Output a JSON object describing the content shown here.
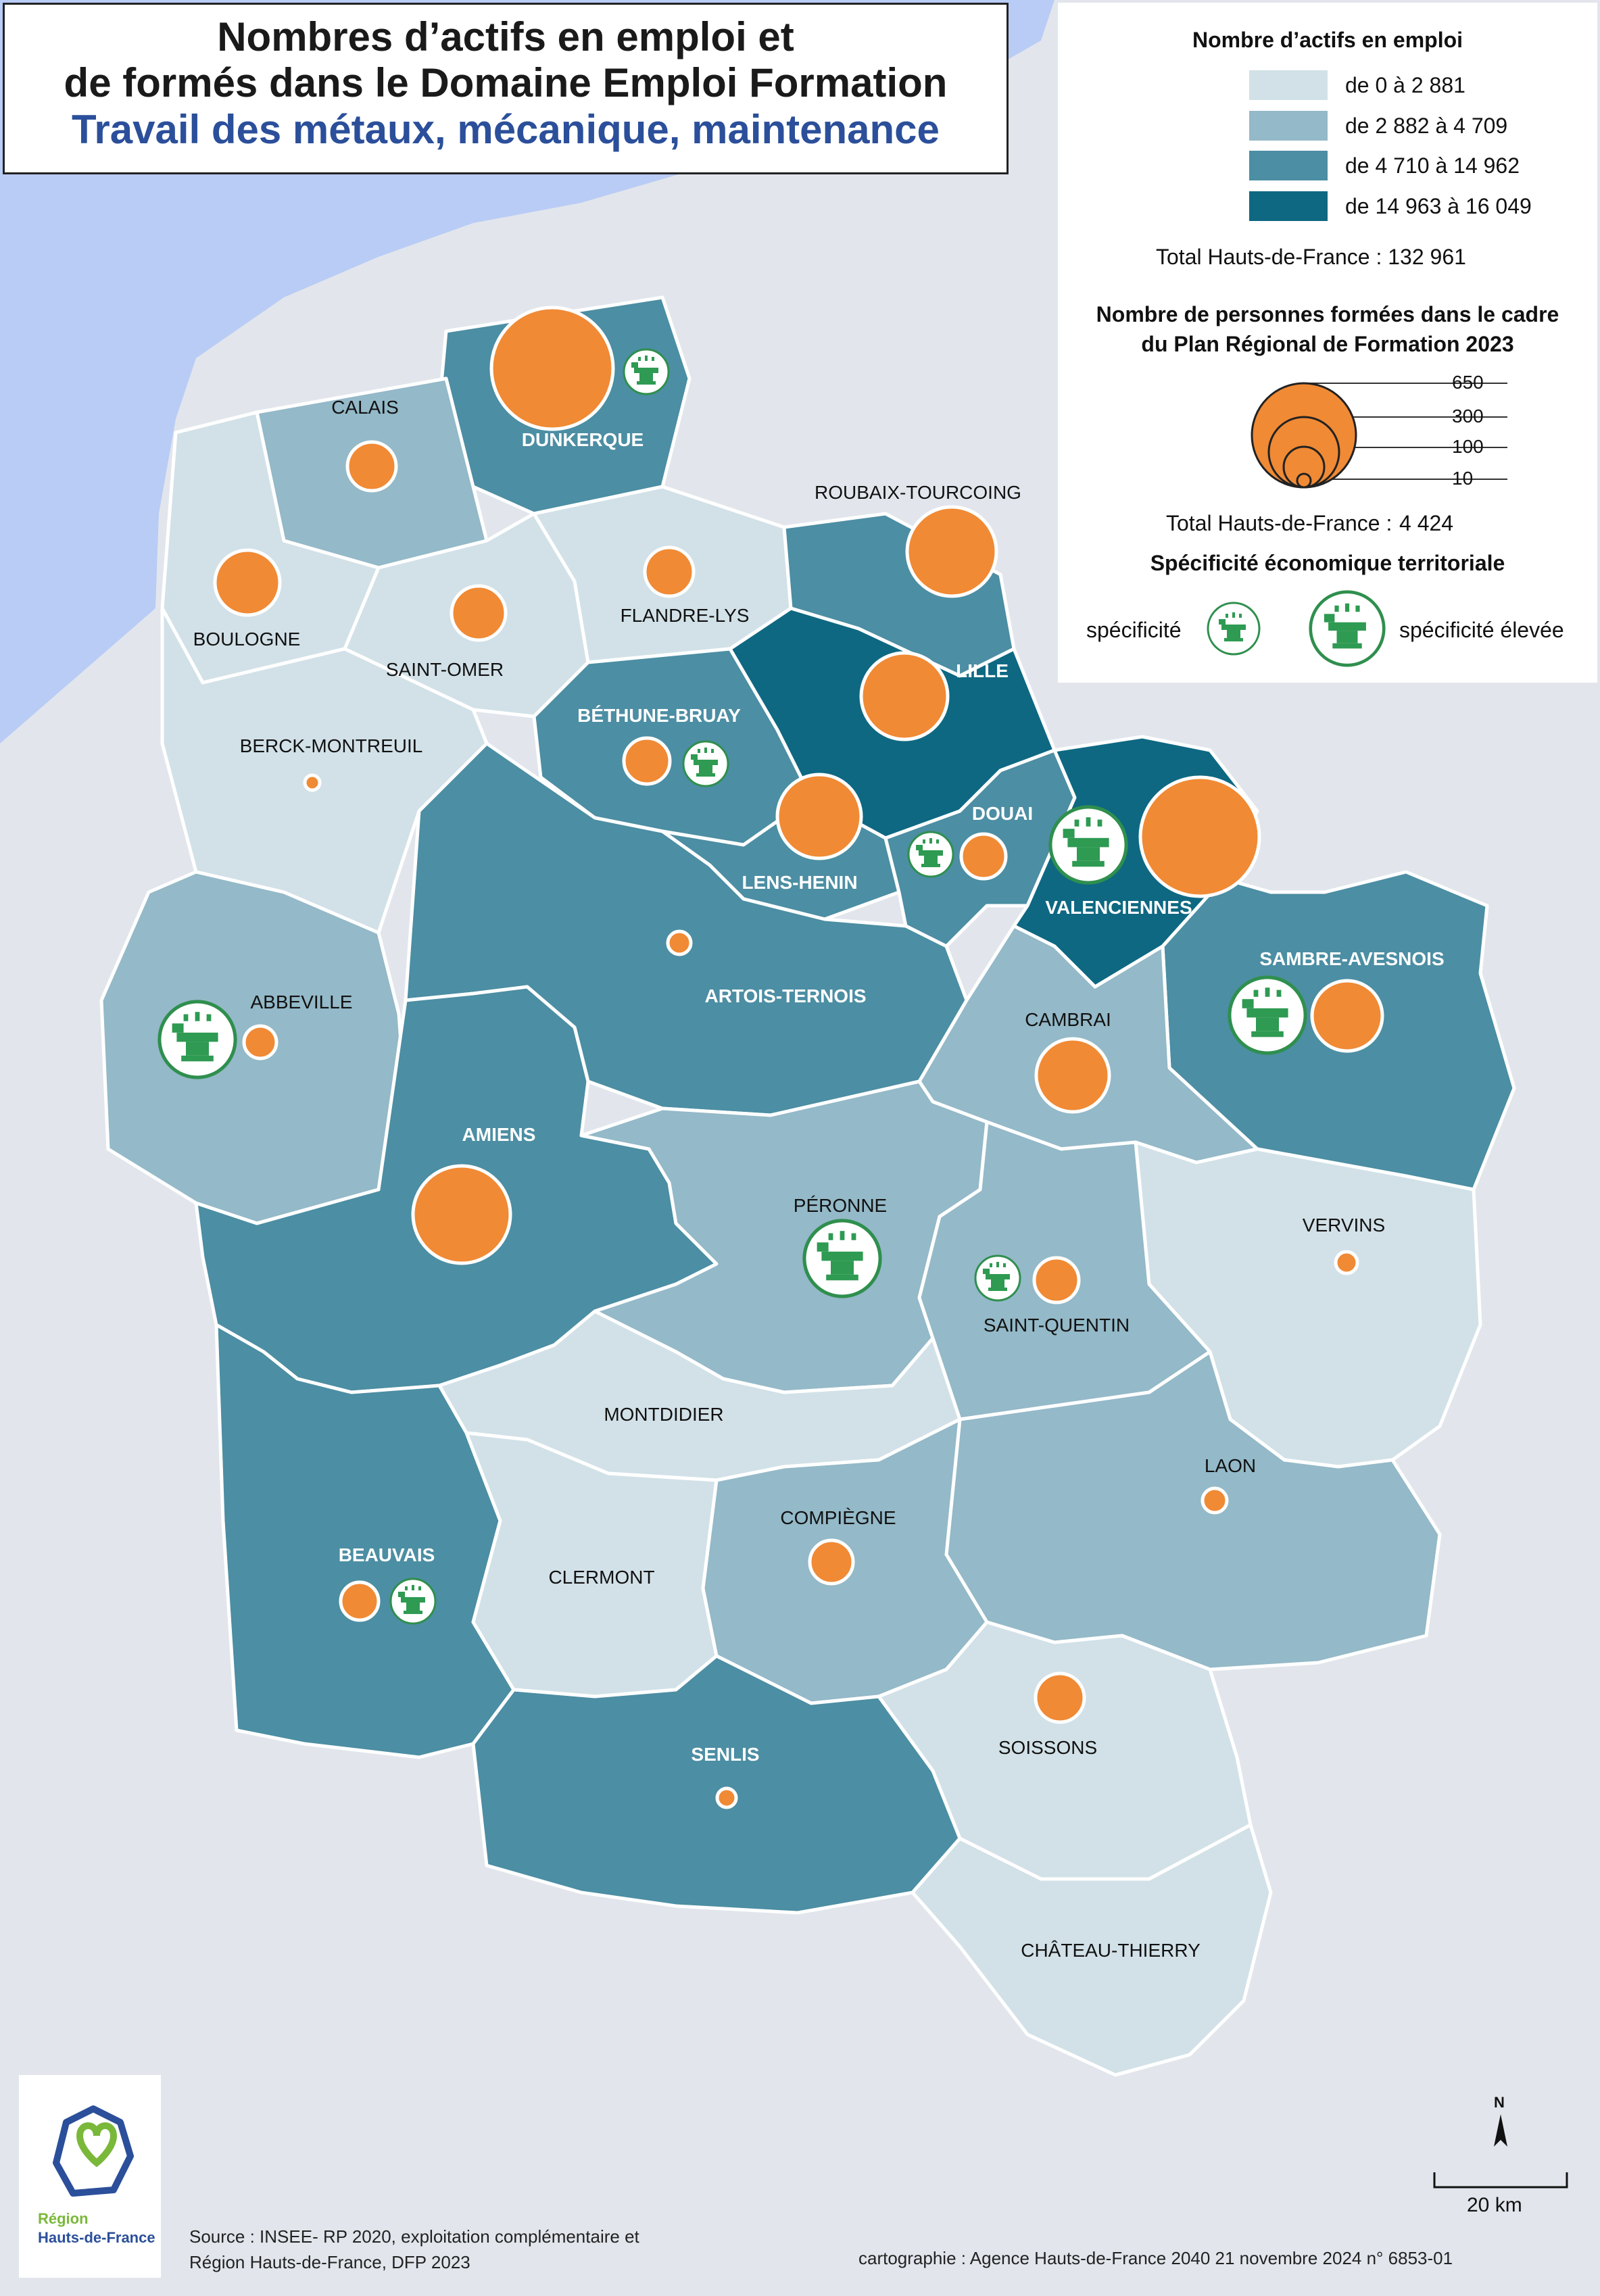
{
  "title": {
    "line1": "Nombres d’actifs en emploi et",
    "line2": "de formés dans le Domaine Emploi Formation",
    "subtitle": "Travail des métaux, mécanique, maintenance"
  },
  "legend": {
    "employment_title": "Nombre d’actifs en emploi",
    "classes": [
      {
        "label": "de 0 à 2 881",
        "color": "#d2e1e8"
      },
      {
        "label": "de 2 882 à 4 709",
        "color": "#94b9c8"
      },
      {
        "label": "de 4 710 à 14 962",
        "color": "#4c8ea3"
      },
      {
        "label": "de 14 963 à 16 049",
        "color": "#0e6882"
      }
    ],
    "employment_total": "Total Hauts-de-France : 132 961",
    "trained_title_line1": "Nombre de personnes formées dans le cadre",
    "trained_title_line2": "du Plan Régional de Formation 2023",
    "trained_sizes": [
      {
        "label": "650",
        "value": 650
      },
      {
        "label": "300",
        "value": 300
      },
      {
        "label": "100",
        "value": 100
      },
      {
        "label": "10",
        "value": 10
      }
    ],
    "trained_total_label": "Total Hauts-de-France :",
    "trained_total_value": "4 424",
    "specificity_title": "Spécificité économique territoriale",
    "specificity_label": "spécificité",
    "specificity_high_label": "spécificité élevée"
  },
  "colors": {
    "sea": "#b9ccf5",
    "outside": "#e2e6ec",
    "circle": "#f08a35",
    "specificity_green": "#2e9a52"
  },
  "zones": [
    {
      "name": "DUNKERQUE",
      "class": 2
    },
    {
      "name": "CALAIS",
      "class": 1
    },
    {
      "name": "BOULOGNE",
      "class": 0
    },
    {
      "name": "SAINT-OMER",
      "class": 0
    },
    {
      "name": "FLANDRE-LYS",
      "class": 0
    },
    {
      "name": "ROUBAIX-TOURCOING",
      "class": 2
    },
    {
      "name": "LILLE",
      "class": 3
    },
    {
      "name": "BÉTHUNE-BRUAY",
      "class": 2
    },
    {
      "name": "BERCK-MONTREUIL",
      "class": 0
    },
    {
      "name": "LENS-HENIN",
      "class": 2
    },
    {
      "name": "DOUAI",
      "class": 2
    },
    {
      "name": "VALENCIENNES",
      "class": 3
    },
    {
      "name": "ARTOIS-TERNOIS",
      "class": 2
    },
    {
      "name": "SAMBRE-AVESNOIS",
      "class": 2
    },
    {
      "name": "ABBEVILLE",
      "class": 1
    },
    {
      "name": "CAMBRAI",
      "class": 1
    },
    {
      "name": "AMIENS",
      "class": 2
    },
    {
      "name": "PÉRONNE",
      "class": 1
    },
    {
      "name": "VERVINS",
      "class": 0
    },
    {
      "name": "SAINT-QUENTIN",
      "class": 1
    },
    {
      "name": "MONTDIDIER",
      "class": 0
    },
    {
      "name": "LAON",
      "class": 1
    },
    {
      "name": "BEAUVAIS",
      "class": 2
    },
    {
      "name": "CLERMONT",
      "class": 0
    },
    {
      "name": "COMPIÈGNE",
      "class": 1
    },
    {
      "name": "SOISSONS",
      "class": 0
    },
    {
      "name": "SENLIS",
      "class": 2
    },
    {
      "name": "CHÂTEAU-THIERRY",
      "class": 0
    }
  ],
  "footer": {
    "logo_line1": "Région",
    "logo_line2": "Hauts-de-France",
    "source_line1": "Source : INSEE- RP 2020, exploitation complémentaire et",
    "source_line2": "Région Hauts-de-France, DFP 2023",
    "credit": "cartographie : Agence Hauts-de-France 2040  21 novembre 2024  n° 6853-01",
    "north": "N",
    "scale": "20 km"
  }
}
